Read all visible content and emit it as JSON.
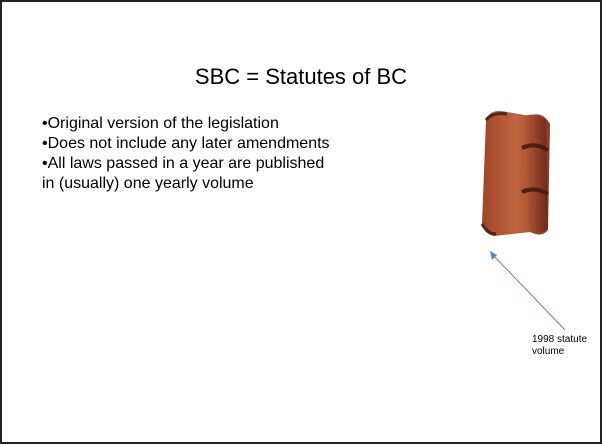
{
  "slide": {
    "title": "SBC = Statutes of BC",
    "bullets": [
      "Original version of the legislation",
      "Does not include any later amendments",
      "All laws passed in a year are published in (usually) one yearly volume"
    ],
    "caption": "1998 statute volume"
  }
}
